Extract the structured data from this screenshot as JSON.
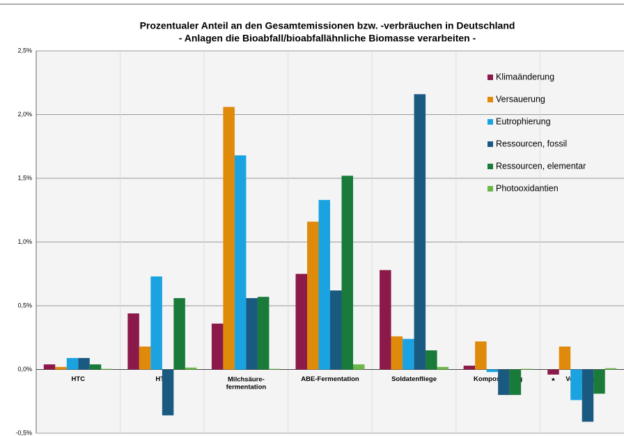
{
  "chart_data": {
    "type": "bar",
    "title": "Prozentualer Anteil an den Gesamtemissionen bzw. -verbräuchen in Deutschland",
    "subtitle": "- Anlagen die Bioabfall/bioabfallähnliche Biomasse verarbeiten -",
    "categories": [
      "HTC",
      "HTV",
      "Milchsäure-\nfermentation",
      "ABE-Fermentation",
      "Soldatenfliege",
      "Kompostierung",
      "Vergarung"
    ],
    "series": [
      {
        "name": "Klimaänderung",
        "color": "#8b1a4a",
        "values": [
          0.04,
          0.44,
          0.36,
          0.75,
          0.78,
          0.03,
          -0.04
        ]
      },
      {
        "name": "Versauerung",
        "color": "#e08a0c",
        "values": [
          0.02,
          0.18,
          2.06,
          1.16,
          0.26,
          0.22,
          0.18
        ]
      },
      {
        "name": "Eutrophierung",
        "color": "#1aa3e0",
        "values": [
          0.09,
          0.73,
          1.68,
          1.33,
          0.24,
          -0.02,
          -0.24
        ]
      },
      {
        "name": "Ressourcen, fossil",
        "color": "#1a5a80",
        "values": [
          0.09,
          -0.36,
          0.56,
          0.62,
          2.16,
          -0.2,
          -0.41
        ]
      },
      {
        "name": "Ressourcen, elementar",
        "color": "#1a7a3a",
        "values": [
          0.04,
          0.56,
          0.57,
          1.52,
          0.15,
          -0.2,
          -0.19
        ]
      },
      {
        "name": "Photooxidantien",
        "color": "#6ab84a",
        "values": [
          0.005,
          0.015,
          0.005,
          0.04,
          0.02,
          0.005,
          0.01
        ]
      }
    ],
    "ylim": [
      -0.5,
      2.5
    ],
    "yticks": [
      {
        "value": -0.5,
        "label": "-0,5%"
      },
      {
        "value": 0,
        "label": "0,0%"
      },
      {
        "value": 0.5,
        "label": "0,5%"
      },
      {
        "value": 1,
        "label": "1,0%"
      },
      {
        "value": 1.5,
        "label": "1,5%"
      },
      {
        "value": 2,
        "label": "2,0%"
      },
      {
        "value": 2.5,
        "label": "2,5%"
      }
    ],
    "annotations": [
      "*"
    ],
    "grid": true
  }
}
